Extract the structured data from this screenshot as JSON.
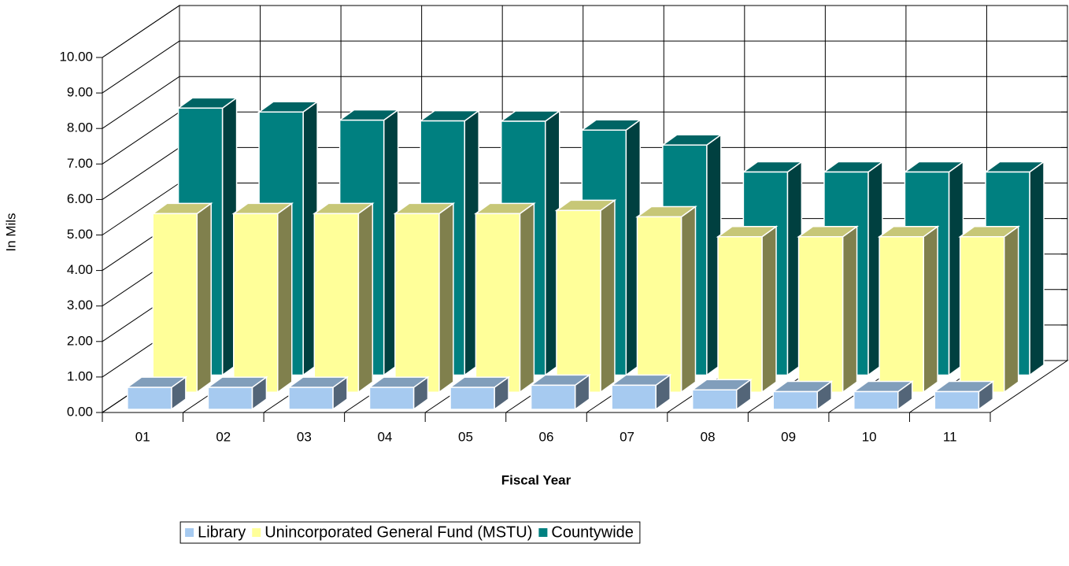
{
  "chart_data": {
    "type": "bar3d",
    "y_label": "In Mils",
    "x_label": "Fiscal Year",
    "categories": [
      "01",
      "02",
      "03",
      "04",
      "05",
      "06",
      "07",
      "08",
      "09",
      "10",
      "11"
    ],
    "series": [
      {
        "name": "Library",
        "color": "#a6caf0",
        "values": [
          0.62,
          0.62,
          0.62,
          0.62,
          0.62,
          0.68,
          0.68,
          0.55,
          0.5,
          0.5,
          0.5
        ]
      },
      {
        "name": "Unincorporated General Fund (MSTU)",
        "color": "#ffff99",
        "values": [
          5.03,
          5.03,
          5.03,
          5.03,
          5.03,
          5.12,
          4.94,
          4.38,
          4.38,
          4.38,
          4.38
        ]
      },
      {
        "name": "Countywide",
        "color": "#008080",
        "values": [
          7.52,
          7.41,
          7.18,
          7.16,
          7.15,
          6.9,
          6.48,
          5.72,
          5.72,
          5.72,
          5.72
        ]
      }
    ],
    "ylim": [
      0,
      10
    ],
    "yticks": [
      {
        "value": 0,
        "label": "0.00"
      },
      {
        "value": 1,
        "label": "1.00"
      },
      {
        "value": 2,
        "label": "2.00"
      },
      {
        "value": 3,
        "label": "3.00"
      },
      {
        "value": 4,
        "label": "4.00"
      },
      {
        "value": 5,
        "label": "5.00"
      },
      {
        "value": 6,
        "label": "6.00"
      },
      {
        "value": 7,
        "label": "7.00"
      },
      {
        "value": 8,
        "label": "8.00"
      },
      {
        "value": 9,
        "label": "9.00"
      },
      {
        "value": 10,
        "label": "10.00"
      }
    ],
    "grid": true,
    "legend": "bottom"
  }
}
